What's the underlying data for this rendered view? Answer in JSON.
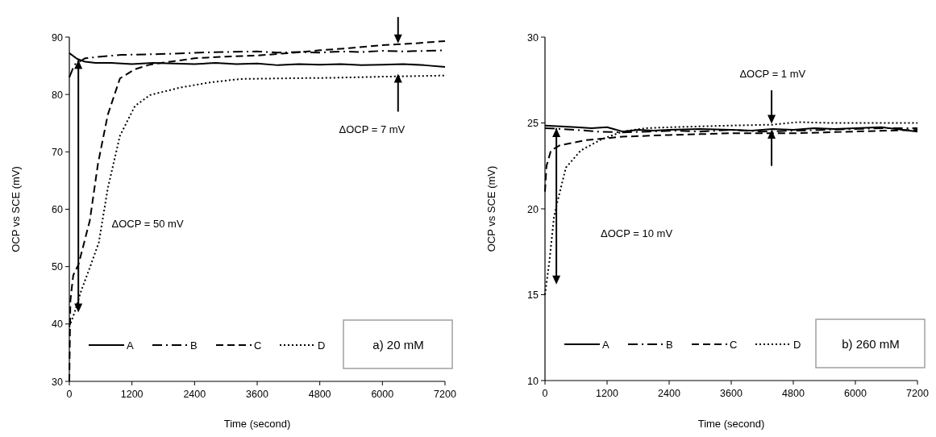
{
  "chart_data": [
    {
      "type": "line",
      "title": "a) 20 mM",
      "xlabel": "Time (second)",
      "ylabel": "OCP vs SCE (mV)",
      "xlim": [
        0,
        7200
      ],
      "xticks": [
        0,
        1200,
        2400,
        3600,
        4800,
        6000,
        7200
      ],
      "ylim": [
        30,
        90
      ],
      "yticks": [
        30,
        40,
        50,
        60,
        70,
        80,
        90
      ],
      "grid": false,
      "legend": "bottom left",
      "marker": "none",
      "annotations": [
        "ΔOCP = 50 mV",
        "ΔOCP = 7 mV"
      ],
      "series": [
        {
          "name": "A",
          "color": "#000000",
          "line_style": "solid",
          "x": [
            0,
            150,
            300,
            500,
            800,
            1200,
            1600,
            2000,
            2400,
            2800,
            3200,
            3600,
            4000,
            4400,
            4800,
            5200,
            5600,
            6000,
            6400,
            6800,
            7200
          ],
          "values": [
            87.2,
            86.2,
            85.7,
            85.5,
            85.5,
            85.3,
            85.5,
            85.4,
            85.3,
            85.5,
            85.3,
            85.4,
            85.1,
            85.3,
            85.2,
            85.3,
            85.1,
            85.2,
            85.3,
            85.1,
            84.8
          ]
        },
        {
          "name": "B",
          "color": "#000000",
          "line_style": "dashed",
          "x": [
            0,
            100,
            300,
            600,
            1000,
            1500,
            2000,
            2500,
            3000,
            3600,
            4000,
            4400,
            4800,
            5200,
            5600,
            6000,
            6400,
            6800,
            7200
          ],
          "values": [
            83,
            85.2,
            86.3,
            86.6,
            86.9,
            87,
            87.1,
            87.3,
            87.4,
            87.5,
            87.3,
            87.4,
            87.3,
            87.5,
            87.4,
            87.6,
            87.5,
            87.6,
            87.7
          ]
        },
        {
          "name": "C",
          "color": "#000000",
          "line_style": "dashed",
          "x": [
            0,
            20,
            46,
            75,
            173,
            250,
            392,
            550,
            738,
            970,
            1258,
            1546,
            2000,
            2400,
            3000,
            3600,
            4200,
            4800,
            5400,
            6000,
            6600,
            7200
          ],
          "values": [
            30,
            44,
            46.2,
            48.5,
            50.3,
            53,
            58,
            68,
            76.5,
            82.8,
            84.4,
            85.2,
            85.8,
            86.3,
            86.6,
            86.8,
            87.2,
            87.7,
            88.1,
            88.6,
            88.9,
            89.3
          ]
        },
        {
          "name": "D",
          "color": "#000000",
          "line_style": "dotted",
          "x": [
            0,
            100,
            220,
            400,
            565,
            738,
            970,
            1258,
            1546,
            2123,
            2700,
            3277,
            4000,
            5008,
            6000,
            7200
          ],
          "values": [
            39.5,
            42,
            45.6,
            50,
            54.2,
            63.7,
            72.8,
            78,
            79.9,
            81.2,
            82.1,
            82.7,
            82.8,
            82.9,
            83.1,
            83.3
          ]
        }
      ]
    },
    {
      "type": "line",
      "title": "b) 260 mM",
      "xlabel": "Time (second)",
      "ylabel": "OCP vs SCE (mV)",
      "xlim": [
        0,
        7200
      ],
      "xticks": [
        0,
        1200,
        2400,
        3600,
        4800,
        6000,
        7200
      ],
      "ylim": [
        10,
        30
      ],
      "yticks": [
        10,
        15,
        20,
        25,
        30
      ],
      "grid": false,
      "legend": "bottom left",
      "marker": "none",
      "annotations": [
        "ΔOCP = 1 mV",
        "ΔOCP = 10 mV"
      ],
      "series": [
        {
          "name": "A",
          "color": "#000000",
          "line_style": "solid",
          "x": [
            0,
            300,
            600,
            900,
            1200,
            1500,
            1800,
            2100,
            2400,
            3000,
            3600,
            4000,
            4400,
            4800,
            5200,
            5600,
            6000,
            6500,
            7200
          ],
          "values": [
            24.85,
            24.8,
            24.75,
            24.7,
            24.75,
            24.5,
            24.6,
            24.55,
            24.6,
            24.65,
            24.6,
            24.55,
            24.65,
            24.6,
            24.7,
            24.65,
            24.7,
            24.75,
            24.5
          ]
        },
        {
          "name": "B",
          "color": "#000000",
          "line_style": "dashed",
          "x": [
            0,
            300,
            600,
            1000,
            1500,
            2000,
            2500,
            3000,
            3600,
            4200,
            4800,
            5400,
            6000,
            6600,
            7200
          ],
          "values": [
            24.7,
            24.65,
            24.6,
            24.5,
            24.45,
            24.5,
            24.55,
            24.5,
            24.6,
            24.5,
            24.55,
            24.6,
            24.65,
            24.7,
            24.7
          ]
        },
        {
          "name": "C",
          "color": "#000000",
          "line_style": "dashed",
          "x": [
            0,
            30,
            115,
            290,
            800,
            1500,
            2400,
            3000,
            3600,
            4200,
            4800,
            5400,
            6000,
            6600,
            7200
          ],
          "values": [
            21,
            22.5,
            23.4,
            23.7,
            24,
            24.2,
            24.3,
            24.35,
            24.4,
            24.4,
            24.4,
            24.45,
            24.5,
            24.55,
            24.6
          ]
        },
        {
          "name": "D",
          "color": "#000000",
          "line_style": "dotted",
          "x": [
            0,
            87,
            173,
            231,
            404,
            692,
            1096,
            1500,
            1962,
            2400,
            3000,
            3600,
            4400,
            4900,
            5500,
            6200,
            7200
          ],
          "values": [
            15,
            17,
            19.5,
            20.3,
            22.4,
            23.4,
            24.05,
            24.5,
            24.7,
            24.75,
            24.8,
            24.85,
            24.9,
            25.05,
            25,
            25,
            25
          ]
        }
      ]
    }
  ]
}
